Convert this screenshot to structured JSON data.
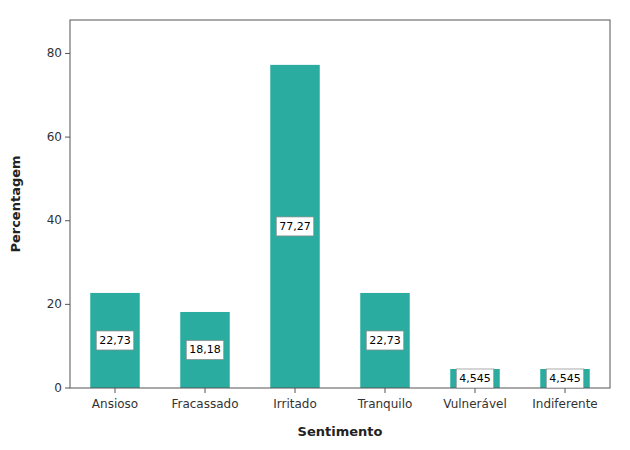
{
  "chart_data": {
    "type": "bar",
    "categories": [
      "Ansioso",
      "Fracassado",
      "Irritado",
      "Tranquilo",
      "Vulnerável",
      "Indiferente"
    ],
    "values": [
      22.73,
      18.18,
      77.27,
      22.73,
      4.545,
      4.545
    ],
    "value_labels": [
      "22,73",
      "18,18",
      "77,27",
      "22,73",
      "4,545",
      "4,545"
    ],
    "data_labels": true,
    "color": "#2aada0",
    "x_label": "Sentimento",
    "y_label": "Percentagem",
    "ylim": [
      0,
      88
    ],
    "yticks": [
      0,
      20,
      40,
      60,
      80
    ],
    "grid": false
  }
}
